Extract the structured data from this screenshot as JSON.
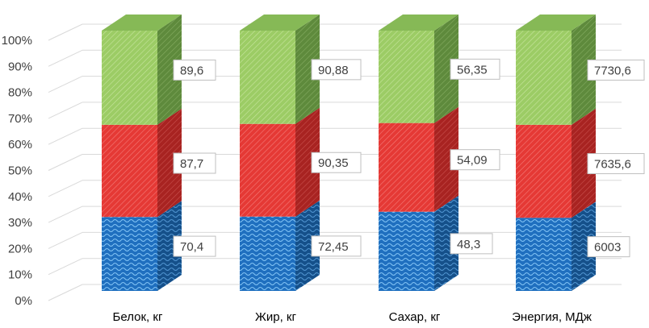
{
  "chart_data": {
    "type": "bar",
    "stacked": "percent",
    "three_d": true,
    "categories": [
      "Белок, кг",
      "Жир, кг",
      "Сахар, кг",
      "Энергия, МДж"
    ],
    "series": [
      {
        "values": [
          70.4,
          72.45,
          48.3,
          6003
        ],
        "labels": [
          "70,4",
          "72,45",
          "48,3",
          "6003"
        ],
        "color": "#1f6fbf",
        "pattern": "waves"
      },
      {
        "values": [
          87.7,
          90.35,
          54.09,
          7635.6
        ],
        "labels": [
          "87,7",
          "90,35",
          "54,09",
          "7635,6"
        ],
        "color": "#e53935",
        "pattern": "diagonal"
      },
      {
        "values": [
          89.6,
          90.88,
          56.35,
          7730.6
        ],
        "labels": [
          "89,6",
          "90,88",
          "56,35",
          "7730,6"
        ],
        "color": "#9ccc65",
        "pattern": "diagonal"
      }
    ],
    "y_ticks": [
      "0%",
      "10%",
      "20%",
      "30%",
      "40%",
      "50%",
      "60%",
      "70%",
      "80%",
      "90%",
      "100%"
    ],
    "ylim": [
      0,
      100
    ],
    "grid": true,
    "legend": "none"
  }
}
